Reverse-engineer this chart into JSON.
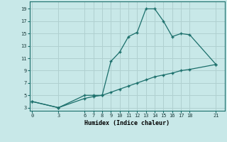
{
  "title": "",
  "xlabel": "Humidex (Indice chaleur)",
  "bg_color": "#c8e8e8",
  "grid_color": "#b0d0d0",
  "line_color": "#1a6e6a",
  "curve1_x": [
    0,
    3,
    6,
    7,
    8,
    9,
    10,
    11,
    12,
    13,
    14,
    15,
    16,
    17,
    18,
    21
  ],
  "curve1_y": [
    4,
    3,
    5,
    5,
    5,
    10.5,
    12,
    14.5,
    15.2,
    19,
    19,
    17,
    14.5,
    15,
    14.8,
    10
  ],
  "curve2_x": [
    0,
    3,
    6,
    7,
    8,
    9,
    10,
    11,
    12,
    13,
    14,
    15,
    16,
    17,
    18,
    21
  ],
  "curve2_y": [
    4,
    3,
    4.5,
    4.8,
    5,
    5.5,
    6,
    6.5,
    7,
    7.5,
    8,
    8.3,
    8.6,
    9,
    9.2,
    10
  ],
  "xticks": [
    0,
    3,
    6,
    7,
    8,
    9,
    10,
    11,
    12,
    13,
    14,
    15,
    16,
    17,
    18,
    21
  ],
  "yticks": [
    3,
    5,
    7,
    9,
    11,
    13,
    15,
    17,
    19
  ],
  "xlim": [
    -0.3,
    22
  ],
  "ylim": [
    2.5,
    20.2
  ]
}
